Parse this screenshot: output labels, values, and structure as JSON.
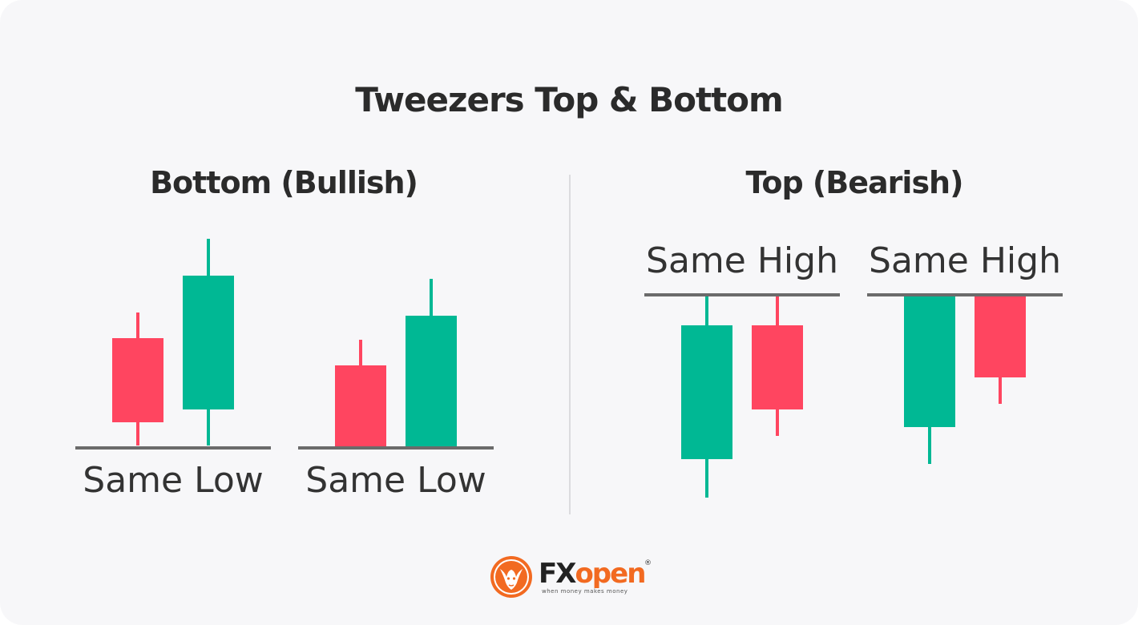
{
  "title": "Tweezers Top & Bottom",
  "left_section": {
    "heading": "Bottom (Bullish)",
    "groups": [
      {
        "label": "Same Low"
      },
      {
        "label": "Same Low"
      }
    ]
  },
  "right_section": {
    "heading": "Top (Bearish)",
    "groups": [
      {
        "label": "Same High"
      },
      {
        "label": "Same High"
      }
    ]
  },
  "colors": {
    "bullish": "#00b894",
    "bearish": "#ff4560",
    "reference_line": "#6b6b6b",
    "brand_accent": "#f26a21"
  },
  "logo": {
    "brand_fx": "FX",
    "brand_open": "open",
    "tagline": "when money makes money",
    "registered": "®",
    "icon": "bull-icon"
  }
}
